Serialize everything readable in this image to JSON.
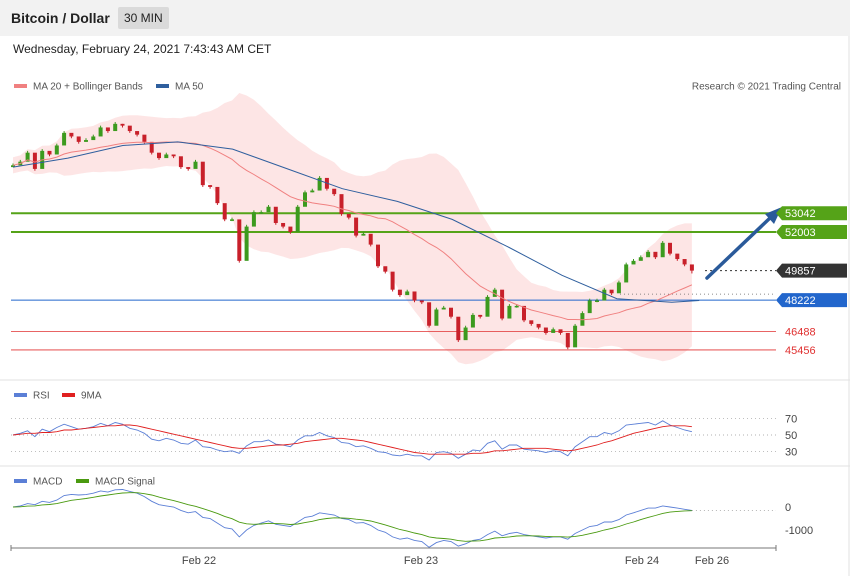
{
  "header": {
    "title": "Bitcoin / Dollar",
    "timeframe": "30 MIN"
  },
  "timestamp": "Wednesday, February 24, 2021 7:43:43 AM CET",
  "price_panel": {
    "legend": [
      {
        "label": "MA 20 + Bollinger Bands",
        "color": "#f08080"
      },
      {
        "label": "MA 50",
        "color": "#2f5f9e"
      }
    ],
    "copyright": "Research © 2021 Trading Central"
  },
  "rsi_panel": {
    "legend": [
      {
        "label": "RSI",
        "color": "#5b7fd6"
      },
      {
        "label": "9MA",
        "color": "#e02020"
      }
    ]
  },
  "macd_panel": {
    "legend": [
      {
        "label": "MACD",
        "color": "#5b7fd6"
      },
      {
        "label": "MACD Signal",
        "color": "#4a9a10"
      }
    ]
  },
  "colors": {
    "up_candle": "#3c9a1e",
    "down_candle": "#c8202a",
    "resistance": "#55a318",
    "support": "#2266cc",
    "secondary_support": "#e03030",
    "current": "#333333",
    "arrow": "#2a5a9a"
  },
  "chart_data": {
    "type": "candlestick",
    "instrument": "Bitcoin / Dollar",
    "interval": "30 MIN",
    "x_tick_labels": [
      "Feb 22",
      "Feb 23",
      "Feb 24",
      "Feb 26"
    ],
    "price_range": [
      43900,
      59600
    ],
    "levels": [
      {
        "value": 53042,
        "label": "53042",
        "kind": "resistance"
      },
      {
        "value": 52003,
        "label": "52003",
        "kind": "resistance"
      },
      {
        "value": 49857,
        "label": "49857",
        "kind": "current"
      },
      {
        "value": 48222,
        "label": "48222",
        "kind": "support"
      },
      {
        "value": 46488,
        "label": "46488",
        "kind": "secondary_support"
      },
      {
        "value": 45456,
        "label": "45456",
        "kind": "secondary_support"
      }
    ],
    "price_close": [
      55700,
      55900,
      56400,
      55500,
      56500,
      56300,
      56800,
      57500,
      57300,
      57000,
      57100,
      57300,
      57800,
      57600,
      58000,
      57900,
      57600,
      57400,
      57000,
      56400,
      56100,
      56300,
      56200,
      55600,
      55500,
      55900,
      54600,
      54500,
      53600,
      52700,
      52700,
      50400,
      52300,
      53100,
      53100,
      53400,
      52500,
      52300,
      52000,
      53400,
      54200,
      54300,
      55000,
      54400,
      54100,
      53000,
      52800,
      51800,
      51900,
      51300,
      50100,
      49800,
      48800,
      48500,
      48700,
      48200,
      48100,
      46800,
      47700,
      47800,
      47300,
      46000,
      46700,
      47400,
      47300,
      48400,
      48800,
      47200,
      47900,
      47900,
      47100,
      46900,
      46700,
      46400,
      46600,
      46400,
      45600,
      46800,
      47500,
      48200,
      48200,
      48800,
      48600,
      49200,
      50200,
      50400,
      50600,
      50900,
      50600,
      51400,
      50800,
      50500,
      50200,
      49857
    ],
    "price_high": [
      55800,
      56000,
      56500,
      55600,
      56600,
      56400,
      56900,
      57600,
      57400,
      57100,
      57200,
      57400,
      57900,
      57700,
      58100,
      58000,
      57700,
      57500,
      57100,
      56500,
      56200,
      56400,
      56300,
      55700,
      55600,
      56000,
      54700,
      54600,
      53700,
      52800,
      52800,
      50500,
      52400,
      53200,
      53200,
      53500,
      52600,
      52400,
      52100,
      53500,
      54300,
      54400,
      55100,
      54500,
      54200,
      53100,
      52900,
      51900,
      52000,
      51400,
      50200,
      49900,
      48900,
      48600,
      48800,
      48300,
      48200,
      46900,
      47800,
      47900,
      47400,
      46100,
      46800,
      47500,
      47400,
      48500,
      48900,
      47300,
      48000,
      48000,
      47200,
      47000,
      46800,
      46500,
      46700,
      46500,
      45700,
      46900,
      47600,
      48300,
      48300,
      48900,
      48700,
      49300,
      50300,
      50500,
      50700,
      51000,
      50700,
      51500,
      50900,
      50600,
      50300,
      50000
    ],
    "price_low": [
      55600,
      55800,
      56300,
      55400,
      56400,
      56200,
      56700,
      57400,
      57200,
      56900,
      57000,
      57200,
      57700,
      57500,
      57900,
      57800,
      57500,
      57300,
      56900,
      56300,
      56000,
      56200,
      56100,
      55500,
      55400,
      55800,
      54500,
      54400,
      53500,
      52600,
      52600,
      50300,
      52200,
      53000,
      53000,
      53300,
      52400,
      52200,
      51900,
      53300,
      54100,
      54200,
      54900,
      54300,
      54000,
      52900,
      52700,
      51700,
      51800,
      51200,
      50000,
      49700,
      48700,
      48400,
      48600,
      48100,
      48000,
      46700,
      47600,
      47700,
      47200,
      45900,
      46600,
      47300,
      47200,
      48300,
      48700,
      47100,
      47800,
      47800,
      47000,
      46800,
      46600,
      46300,
      46500,
      46300,
      45500,
      46700,
      47400,
      48100,
      48100,
      48700,
      48500,
      49100,
      50100,
      50300,
      50500,
      50800,
      50500,
      51300,
      50700,
      50400,
      50100,
      49700
    ],
    "ma50_points": [
      [
        0,
        55600
      ],
      [
        10,
        56100
      ],
      [
        20,
        56800
      ],
      [
        30,
        57000
      ],
      [
        40,
        56600
      ],
      [
        50,
        55500
      ],
      [
        60,
        54400
      ],
      [
        70,
        53700
      ],
      [
        80,
        52700
      ],
      [
        90,
        51200
      ],
      [
        100,
        49600
      ],
      [
        110,
        48300
      ],
      [
        120,
        48100
      ],
      [
        125,
        48200
      ]
    ],
    "rsi": {
      "y_ticks": [
        70,
        50,
        30
      ],
      "rsi_values": [
        50,
        52,
        55,
        48,
        57,
        54,
        59,
        63,
        60,
        57,
        58,
        60,
        64,
        61,
        65,
        63,
        58,
        56,
        52,
        45,
        43,
        46,
        44,
        40,
        39,
        44,
        36,
        35,
        32,
        30,
        31,
        28,
        37,
        42,
        42,
        44,
        39,
        38,
        36,
        44,
        49,
        49,
        53,
        49,
        47,
        41,
        40,
        36,
        37,
        34,
        30,
        29,
        26,
        25,
        27,
        25,
        25,
        20,
        29,
        30,
        28,
        22,
        27,
        32,
        31,
        40,
        43,
        33,
        38,
        38,
        33,
        32,
        31,
        29,
        31,
        30,
        25,
        36,
        42,
        48,
        48,
        53,
        51,
        55,
        62,
        63,
        64,
        65,
        62,
        67,
        62,
        59,
        56,
        54
      ],
      "ma9_values": [
        50,
        51,
        52,
        52,
        53,
        53,
        54,
        56,
        56,
        57,
        58,
        59,
        60,
        61,
        61,
        62,
        62,
        61,
        59,
        57,
        55,
        53,
        51,
        49,
        47,
        45,
        43,
        41,
        39,
        37,
        35,
        34,
        34,
        35,
        36,
        37,
        38,
        38,
        39,
        40,
        42,
        43,
        44,
        45,
        46,
        46,
        45,
        44,
        43,
        41,
        39,
        37,
        35,
        33,
        31,
        29,
        28,
        27,
        27,
        27,
        27,
        27,
        27,
        28,
        28,
        29,
        31,
        31,
        32,
        33,
        34,
        34,
        34,
        34,
        33,
        32,
        31,
        32,
        34,
        36,
        38,
        41,
        43,
        46,
        49,
        52,
        54,
        56,
        58,
        60,
        61,
        61,
        61,
        60
      ]
    },
    "macd": {
      "y_ticks": [
        0,
        -1000
      ],
      "macd_values": [
        0,
        50,
        150,
        100,
        250,
        200,
        300,
        500,
        550,
        520,
        540,
        600,
        700,
        650,
        750,
        760,
        680,
        600,
        450,
        250,
        100,
        50,
        0,
        -150,
        -250,
        -200,
        -450,
        -500,
        -700,
        -900,
        -950,
        -1300,
        -1000,
        -800,
        -700,
        -600,
        -750,
        -800,
        -850,
        -650,
        -450,
        -400,
        -250,
        -300,
        -350,
        -500,
        -550,
        -700,
        -680,
        -800,
        -1000,
        -1100,
        -1300,
        -1400,
        -1350,
        -1450,
        -1500,
        -1750,
        -1550,
        -1450,
        -1500,
        -1700,
        -1600,
        -1450,
        -1400,
        -1200,
        -1050,
        -1250,
        -1150,
        -1100,
        -1200,
        -1250,
        -1300,
        -1350,
        -1300,
        -1300,
        -1400,
        -1150,
        -1000,
        -850,
        -800,
        -650,
        -650,
        -550,
        -350,
        -250,
        -150,
        -50,
        -50,
        50,
        0,
        -50,
        -100,
        -150
      ],
      "signal_values": [
        0,
        10,
        40,
        50,
        90,
        110,
        150,
        220,
        290,
        330,
        370,
        420,
        480,
        520,
        570,
        610,
        620,
        620,
        580,
        520,
        430,
        350,
        280,
        190,
        100,
        30,
        -70,
        -170,
        -280,
        -410,
        -510,
        -660,
        -730,
        -750,
        -740,
        -710,
        -720,
        -730,
        -760,
        -740,
        -680,
        -620,
        -550,
        -500,
        -470,
        -480,
        -490,
        -530,
        -560,
        -610,
        -690,
        -780,
        -880,
        -980,
        -1050,
        -1130,
        -1200,
        -1300,
        -1350,
        -1370,
        -1400,
        -1460,
        -1490,
        -1480,
        -1470,
        -1420,
        -1350,
        -1330,
        -1300,
        -1260,
        -1250,
        -1250,
        -1260,
        -1280,
        -1290,
        -1290,
        -1310,
        -1280,
        -1230,
        -1160,
        -1090,
        -1000,
        -930,
        -850,
        -740,
        -650,
        -550,
        -450,
        -370,
        -280,
        -220,
        -190,
        -170,
        -160
      ]
    }
  }
}
